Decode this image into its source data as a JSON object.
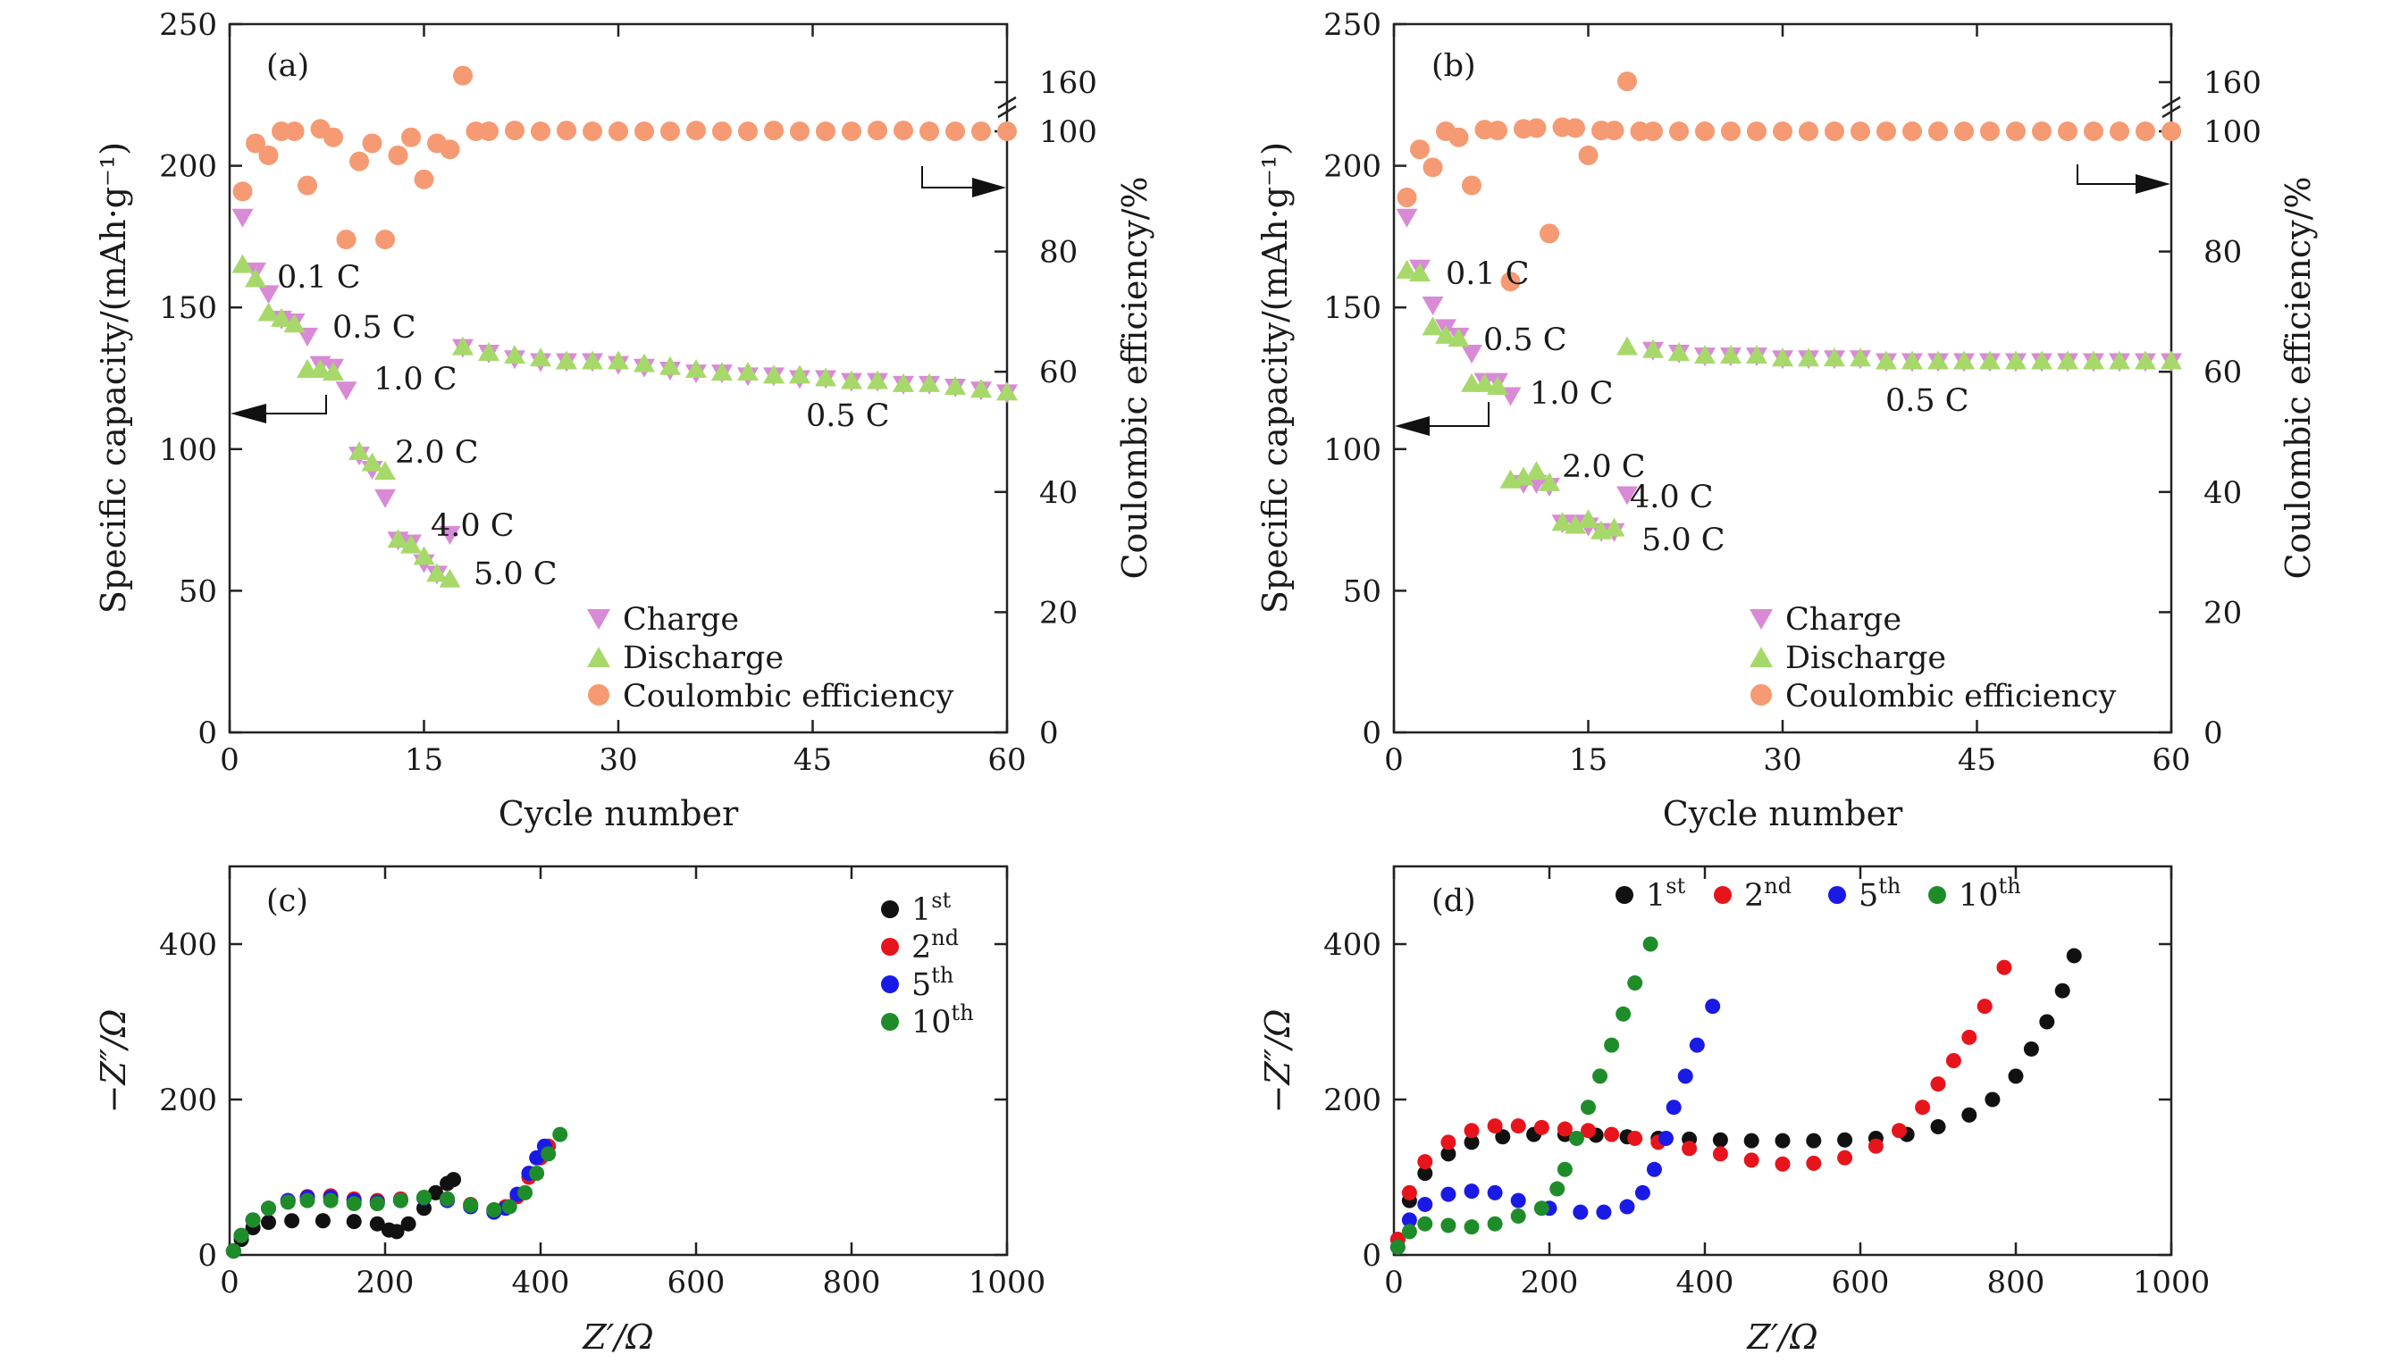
{
  "chart_data": [
    {
      "panel": "(a)",
      "type": "scatter",
      "xlabel": "Cycle number",
      "ylabel": "Specific capacity/(mAh·g⁻¹)",
      "y2label": "Coulombic efficiency/%",
      "xlim": [
        0,
        60
      ],
      "ylim": [
        0,
        250
      ],
      "y2lim": [
        0,
        160
      ],
      "y2_break": "axis break between 100 and 160",
      "xticks": [
        "0",
        "15",
        "30",
        "45",
        "60"
      ],
      "yticks": [
        "0",
        "50",
        "100",
        "150",
        "200",
        "250"
      ],
      "y2ticks": [
        "0",
        "20",
        "40",
        "60",
        "80",
        "100",
        "160"
      ],
      "legend_position": "bottom-right",
      "legend": [
        "Charge",
        "Discharge",
        "Coulombic efficiency"
      ],
      "series_colors": {
        "Charge": "#d98ad6",
        "Discharge": "#a6d96a",
        "Coulombic efficiency": "#f59a72"
      },
      "rate_labels": [
        "0.1 C",
        "0.5 C",
        "1.0 C",
        "2.0 C",
        "4.0 C",
        "5.0 C",
        "0.5 C"
      ],
      "series": [
        {
          "name": "Charge",
          "axis": "left",
          "x": [
            1,
            2,
            3,
            4,
            5,
            6,
            7,
            8,
            9,
            10,
            11,
            12,
            13,
            14,
            15,
            16,
            17,
            18,
            20,
            22,
            24,
            26,
            28,
            30,
            32,
            34,
            36,
            38,
            40,
            42,
            44,
            46,
            48,
            50,
            52,
            54,
            56,
            58,
            60
          ],
          "y": [
            182,
            163,
            155,
            146,
            145,
            140,
            130,
            129,
            121,
            98,
            93,
            83,
            68,
            67,
            60,
            56,
            70,
            136,
            134,
            132,
            131,
            131,
            131,
            130,
            129,
            128,
            127,
            127,
            126,
            126,
            125,
            125,
            124,
            124,
            123,
            123,
            122,
            121,
            120
          ]
        },
        {
          "name": "Discharge",
          "axis": "left",
          "x": [
            1,
            2,
            3,
            4,
            5,
            6,
            7,
            8,
            10,
            11,
            12,
            13,
            14,
            15,
            16,
            17,
            18,
            20,
            22,
            24,
            26,
            28,
            30,
            32,
            34,
            36,
            38,
            40,
            42,
            44,
            46,
            48,
            50,
            52,
            54,
            56,
            58,
            60
          ],
          "y": [
            165,
            160,
            148,
            146,
            144,
            128,
            128,
            127,
            99,
            95,
            92,
            68,
            66,
            62,
            56,
            54,
            136,
            134,
            133,
            132,
            131,
            131,
            131,
            130,
            129,
            128,
            127,
            127,
            126,
            126,
            125,
            124,
            124,
            123,
            123,
            122,
            121,
            120
          ]
        },
        {
          "name": "Coulombic efficiency",
          "axis": "right",
          "x": [
            1,
            2,
            3,
            4,
            5,
            6,
            7,
            8,
            9,
            10,
            11,
            12,
            13,
            14,
            15,
            16,
            17,
            18,
            19,
            20,
            22,
            24,
            26,
            28,
            30,
            32,
            34,
            36,
            38,
            40,
            42,
            44,
            46,
            48,
            50,
            52,
            54,
            56,
            58,
            60
          ],
          "y": [
            90,
            98,
            96,
            100,
            100,
            91,
            103,
            99,
            82,
            95,
            98,
            82,
            96,
            99,
            92,
            98,
            97,
            168,
            100,
            100,
            101,
            100,
            101,
            100,
            100,
            100,
            100,
            101,
            100,
            100,
            101,
            100,
            100,
            100,
            101,
            101,
            100,
            100,
            100,
            100
          ]
        }
      ]
    },
    {
      "panel": "(b)",
      "type": "scatter",
      "xlabel": "Cycle number",
      "ylabel": "Specific capacity/(mAh·g⁻¹)",
      "y2label": "Coulombic efficiency/%",
      "xlim": [
        0,
        60
      ],
      "ylim": [
        0,
        250
      ],
      "y2lim": [
        0,
        160
      ],
      "y2_break": "axis break between 100 and 160",
      "xticks": [
        "0",
        "15",
        "30",
        "45",
        "60"
      ],
      "yticks": [
        "0",
        "50",
        "100",
        "150",
        "200",
        "250"
      ],
      "y2ticks": [
        "0",
        "20",
        "40",
        "60",
        "80",
        "100",
        "160"
      ],
      "legend_position": "bottom-right",
      "legend": [
        "Charge",
        "Discharge",
        "Coulombic efficiency"
      ],
      "series_colors": {
        "Charge": "#d98ad6",
        "Discharge": "#a6d96a",
        "Coulombic efficiency": "#f59a72"
      },
      "rate_labels": [
        "0.1 C",
        "0.5 C",
        "1.0 C",
        "2.0 C",
        "4.0 C",
        "5.0 C",
        "0.5 C"
      ],
      "series": [
        {
          "name": "Charge",
          "axis": "left",
          "x": [
            1,
            2,
            3,
            4,
            5,
            6,
            7,
            8,
            9,
            10,
            11,
            12,
            13,
            14,
            15,
            16,
            17,
            18,
            20,
            22,
            24,
            26,
            28,
            30,
            32,
            34,
            36,
            38,
            40,
            42,
            44,
            46,
            48,
            50,
            52,
            54,
            56,
            58,
            60
          ],
          "y": [
            182,
            164,
            151,
            143,
            140,
            134,
            124,
            124,
            119,
            88,
            88,
            87,
            74,
            74,
            73,
            71,
            71,
            84,
            135,
            134,
            133,
            133,
            133,
            132,
            132,
            132,
            132,
            131,
            131,
            131,
            131,
            131,
            131,
            131,
            131,
            131,
            131,
            131,
            131
          ]
        },
        {
          "name": "Discharge",
          "axis": "left",
          "x": [
            1,
            2,
            3,
            4,
            5,
            6,
            7,
            8,
            9,
            10,
            11,
            12,
            13,
            14,
            15,
            16,
            17,
            18,
            20,
            22,
            24,
            26,
            28,
            30,
            32,
            34,
            36,
            38,
            40,
            42,
            44,
            46,
            48,
            50,
            52,
            54,
            56,
            58,
            60
          ],
          "y": [
            163,
            162,
            143,
            140,
            139,
            123,
            123,
            122,
            89,
            90,
            92,
            88,
            74,
            73,
            75,
            71,
            72,
            136,
            135,
            134,
            133,
            133,
            133,
            132,
            132,
            132,
            132,
            131,
            131,
            131,
            131,
            131,
            131,
            131,
            131,
            131,
            131,
            131,
            131
          ]
        },
        {
          "name": "Coulombic efficiency",
          "axis": "right",
          "x": [
            1,
            2,
            3,
            4,
            5,
            6,
            7,
            8,
            9,
            10,
            11,
            12,
            13,
            14,
            15,
            16,
            17,
            18,
            19,
            20,
            22,
            24,
            26,
            28,
            30,
            32,
            34,
            36,
            38,
            40,
            42,
            44,
            46,
            48,
            50,
            52,
            54,
            56,
            58,
            60
          ],
          "y": [
            89,
            97,
            94,
            100,
            99,
            91,
            102,
            101,
            75,
            103,
            104,
            83,
            105,
            104,
            96,
            101,
            101,
            161,
            100,
            100,
            100,
            100,
            100,
            100,
            100,
            100,
            100,
            100,
            100,
            100,
            100,
            100,
            100,
            100,
            100,
            100,
            100,
            100,
            100,
            100
          ]
        }
      ]
    },
    {
      "panel": "(c)",
      "type": "scatter",
      "xlabel": "Z′/Ω",
      "ylabel": "−Z″/Ω",
      "xlim": [
        0,
        1000
      ],
      "ylim": [
        0,
        500
      ],
      "xticks": [
        "0",
        "200",
        "400",
        "600",
        "800",
        "1000"
      ],
      "yticks": [
        "0",
        "200",
        "400"
      ],
      "legend_position": "top-right",
      "legend": [
        {
          "num": "1",
          "sup": "st"
        },
        {
          "num": "2",
          "sup": "nd"
        },
        {
          "num": "5",
          "sup": "th"
        },
        {
          "num": "10",
          "sup": "th"
        }
      ],
      "series_colors": [
        "#111111",
        "#e8141c",
        "#1a1ae6",
        "#1f8c2a"
      ],
      "series": [
        {
          "name": "1st",
          "x": [
            5,
            15,
            30,
            50,
            80,
            120,
            160,
            190,
            205,
            215,
            230,
            250,
            265,
            280,
            288
          ],
          "y": [
            5,
            20,
            35,
            42,
            44,
            44,
            43,
            40,
            32,
            30,
            40,
            60,
            80,
            92,
            97
          ]
        },
        {
          "name": "2nd",
          "x": [
            5,
            15,
            30,
            50,
            75,
            100,
            130,
            160,
            190,
            220,
            250,
            280,
            310,
            340,
            355,
            370,
            385,
            400,
            410
          ],
          "y": [
            5,
            25,
            45,
            60,
            70,
            75,
            76,
            72,
            70,
            72,
            74,
            72,
            65,
            58,
            62,
            75,
            100,
            125,
            140
          ]
        },
        {
          "name": "5th",
          "x": [
            5,
            15,
            30,
            50,
            75,
            100,
            130,
            160,
            190,
            220,
            250,
            280,
            310,
            340,
            355,
            370,
            385,
            395,
            405
          ],
          "y": [
            5,
            25,
            45,
            60,
            70,
            74,
            74,
            70,
            68,
            70,
            73,
            70,
            62,
            55,
            60,
            78,
            105,
            125,
            140
          ]
        },
        {
          "name": "10th",
          "x": [
            5,
            15,
            30,
            50,
            75,
            100,
            130,
            160,
            190,
            220,
            250,
            280,
            310,
            340,
            360,
            380,
            395,
            410,
            425
          ],
          "y": [
            5,
            25,
            45,
            60,
            68,
            70,
            70,
            66,
            66,
            70,
            74,
            72,
            64,
            58,
            62,
            80,
            105,
            130,
            155
          ]
        }
      ]
    },
    {
      "panel": "(d)",
      "type": "scatter",
      "xlabel": "Z′/Ω",
      "ylabel": "−Z″/Ω",
      "xlim": [
        0,
        1000
      ],
      "ylim": [
        0,
        500
      ],
      "xticks": [
        "0",
        "200",
        "400",
        "600",
        "800",
        "1000"
      ],
      "yticks": [
        "0",
        "200",
        "400"
      ],
      "legend_position": "top-center",
      "legend": [
        {
          "num": "1",
          "sup": "st"
        },
        {
          "num": "2",
          "sup": "nd"
        },
        {
          "num": "5",
          "sup": "th"
        },
        {
          "num": "10",
          "sup": "th"
        }
      ],
      "series_colors": [
        "#111111",
        "#e8141c",
        "#1a1ae6",
        "#1f8c2a"
      ],
      "series": [
        {
          "name": "1st",
          "x": [
            5,
            20,
            40,
            70,
            100,
            140,
            180,
            220,
            260,
            300,
            340,
            380,
            420,
            460,
            500,
            540,
            580,
            620,
            660,
            700,
            740,
            770,
            800,
            820,
            840,
            860,
            875
          ],
          "y": [
            20,
            70,
            105,
            130,
            145,
            152,
            155,
            155,
            154,
            152,
            150,
            149,
            148,
            147,
            147,
            147,
            148,
            150,
            155,
            165,
            180,
            200,
            230,
            265,
            300,
            340,
            385
          ]
        },
        {
          "name": "2nd",
          "x": [
            5,
            20,
            40,
            70,
            100,
            130,
            160,
            190,
            220,
            250,
            280,
            310,
            340,
            380,
            420,
            460,
            500,
            540,
            580,
            620,
            650,
            680,
            700,
            720,
            740,
            760,
            785
          ],
          "y": [
            20,
            80,
            120,
            145,
            160,
            166,
            166,
            164,
            162,
            160,
            155,
            150,
            145,
            137,
            130,
            122,
            117,
            118,
            125,
            140,
            160,
            190,
            220,
            250,
            280,
            320,
            370
          ]
        },
        {
          "name": "5th",
          "x": [
            5,
            20,
            40,
            70,
            100,
            130,
            160,
            200,
            240,
            270,
            300,
            320,
            335,
            350,
            360,
            375,
            390,
            410
          ],
          "y": [
            10,
            45,
            65,
            78,
            82,
            80,
            70,
            60,
            55,
            55,
            62,
            80,
            110,
            150,
            190,
            230,
            270,
            320
          ]
        },
        {
          "name": "10th",
          "x": [
            5,
            20,
            40,
            70,
            100,
            130,
            160,
            190,
            210,
            220,
            235,
            250,
            265,
            280,
            295,
            310,
            330
          ],
          "y": [
            10,
            30,
            40,
            38,
            36,
            40,
            50,
            60,
            85,
            110,
            150,
            190,
            230,
            270,
            310,
            350,
            400
          ]
        }
      ]
    }
  ]
}
